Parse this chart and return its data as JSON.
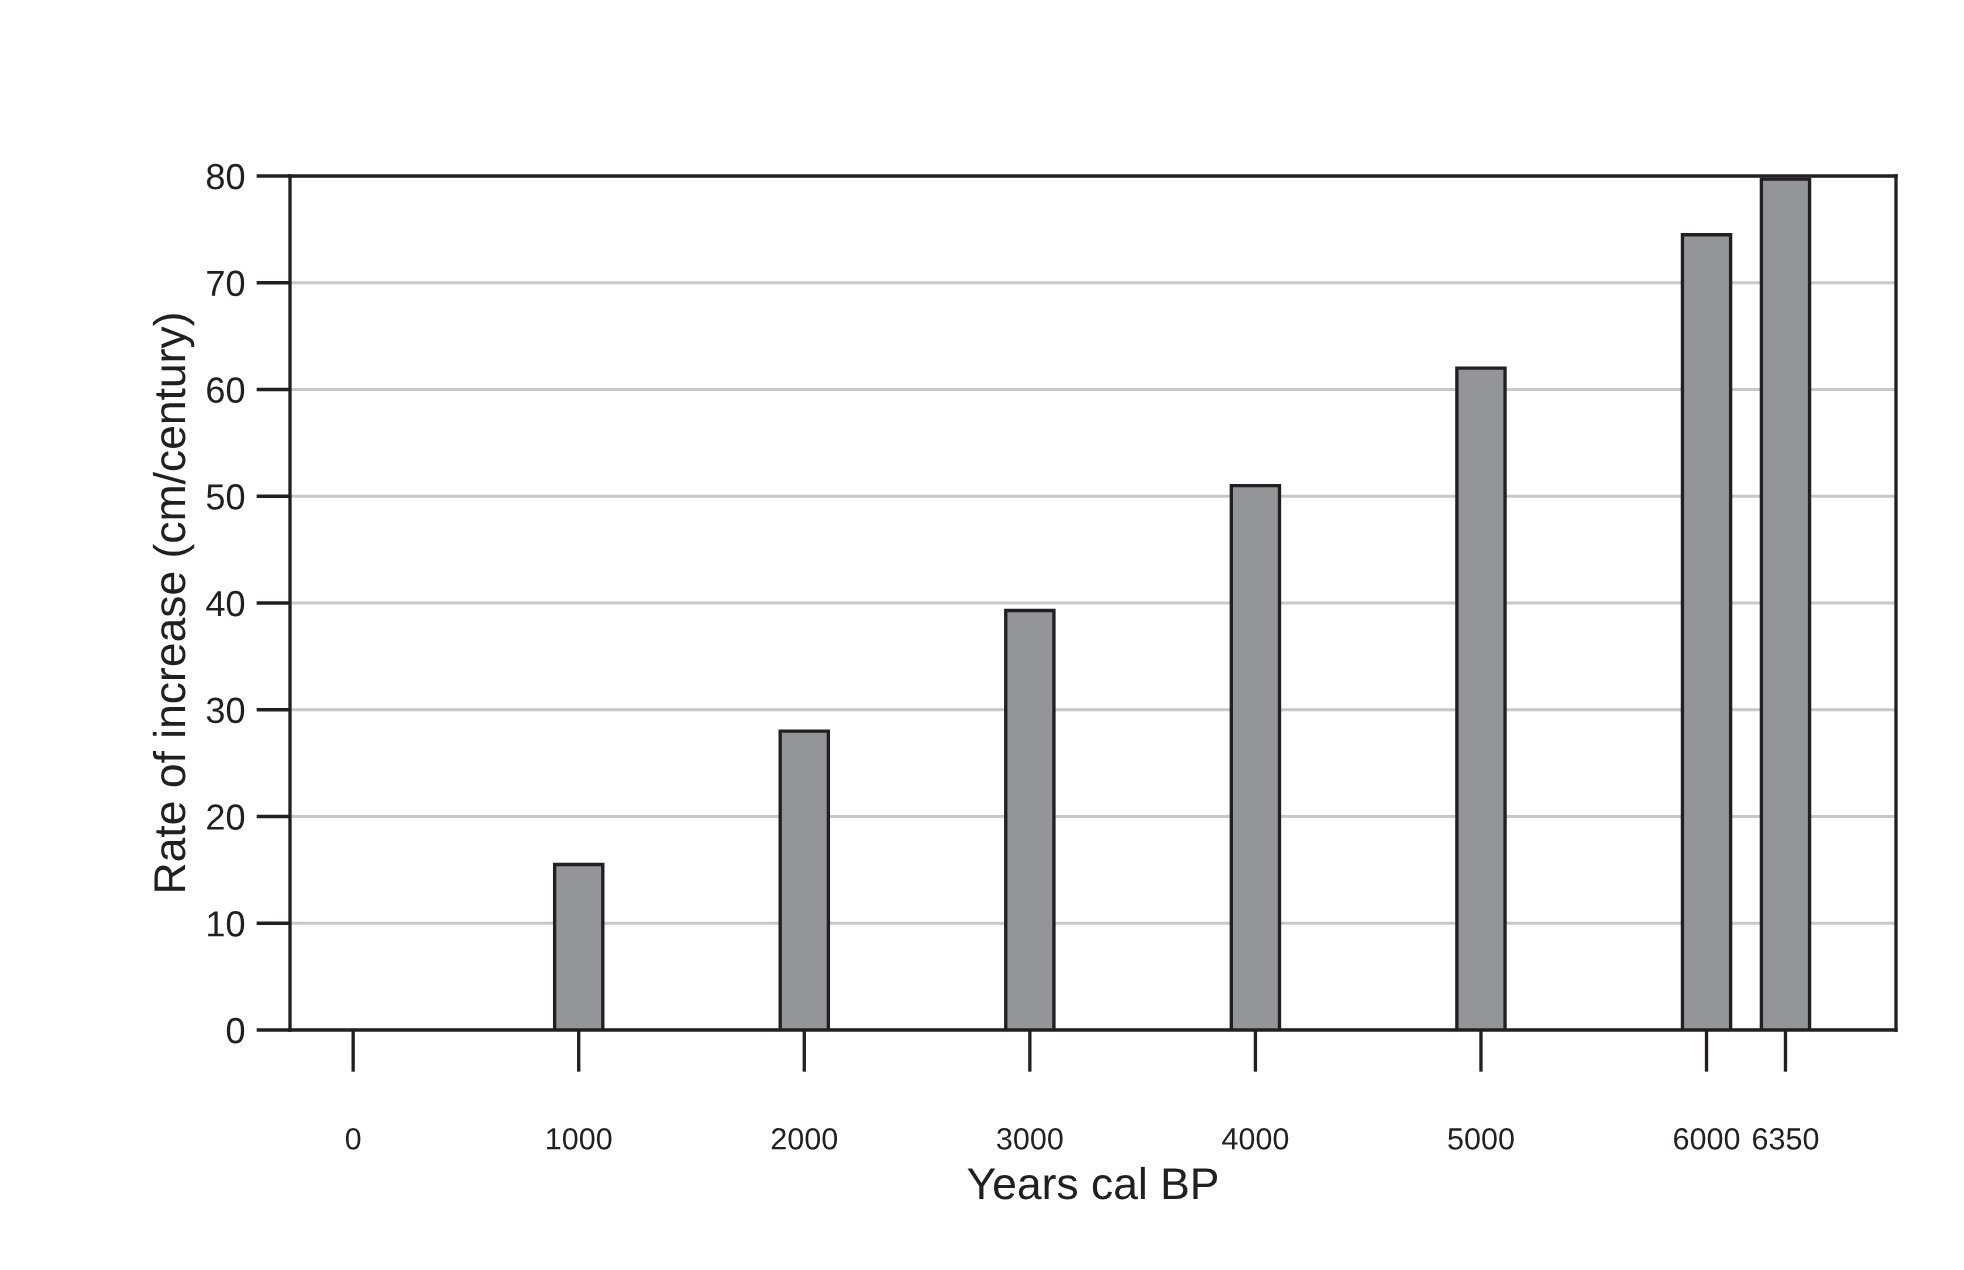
{
  "chart_data": {
    "type": "bar",
    "xlabel": "Years cal BP",
    "ylabel": "Rate of increase (cm/century)",
    "x": [
      1000,
      2000,
      3000,
      4000,
      5000,
      6000,
      6350
    ],
    "values": [
      15.5,
      28,
      39.3,
      51,
      62,
      74.5,
      79.7
    ],
    "color": "#939598",
    "xlim": [
      -280,
      6840
    ],
    "xticks": [
      0,
      1000,
      2000,
      3000,
      4000,
      5000,
      6000,
      6350
    ],
    "ylim": [
      0,
      80
    ],
    "yticks": [
      0,
      10,
      20,
      30,
      40,
      50,
      60,
      70,
      80
    ],
    "grid": "y"
  }
}
